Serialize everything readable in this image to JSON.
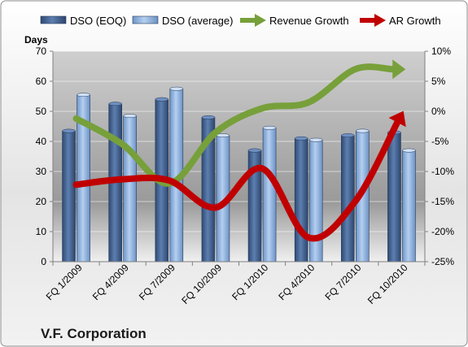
{
  "company": "V.F. Corporation",
  "chart_data": {
    "type": "bar",
    "y_axis_title": "Days",
    "categories": [
      "FQ 1/2009",
      "FQ 4/2009",
      "FQ 7/2009",
      "FQ 10/2009",
      "FQ 1/2010",
      "FQ 4/2010",
      "FQ 7/2010",
      "FQ 10/2010"
    ],
    "ylim": [
      0,
      70
    ],
    "y_ticks": [
      0,
      10,
      20,
      30,
      40,
      50,
      60,
      70
    ],
    "y2lim": [
      -25,
      10
    ],
    "y2_ticks": [
      10,
      5,
      0,
      -5,
      -10,
      -15,
      -20,
      -25
    ],
    "y2_tick_labels": [
      "10%",
      "5%",
      "0%",
      "-5%",
      "-10%",
      "-15%",
      "-20%",
      "-25%"
    ],
    "legend_position": "top",
    "series": [
      {
        "name": "DSO (EOQ)",
        "kind": "bar",
        "axis": "left",
        "color": "#3f5f8f",
        "values": [
          43.5,
          52.5,
          54,
          48,
          37,
          41,
          42,
          43
        ]
      },
      {
        "name": "DSO (average)",
        "kind": "bar",
        "axis": "left",
        "color": "#8eb4e3",
        "values": [
          55.5,
          48.5,
          57.5,
          42,
          44.5,
          40.5,
          43.5,
          37
        ]
      },
      {
        "name": "Revenue Growth",
        "kind": "line",
        "axis": "right",
        "color": "#77a03a",
        "values": [
          -1.2,
          -5.5,
          -12,
          -3.5,
          0.5,
          1.5,
          7,
          7
        ]
      },
      {
        "name": "AR Growth",
        "kind": "line",
        "axis": "right",
        "color": "#c00000",
        "values": [
          -12.2,
          -11.3,
          -11.5,
          -16,
          -9.5,
          -21,
          -15,
          -0.5
        ]
      }
    ]
  }
}
